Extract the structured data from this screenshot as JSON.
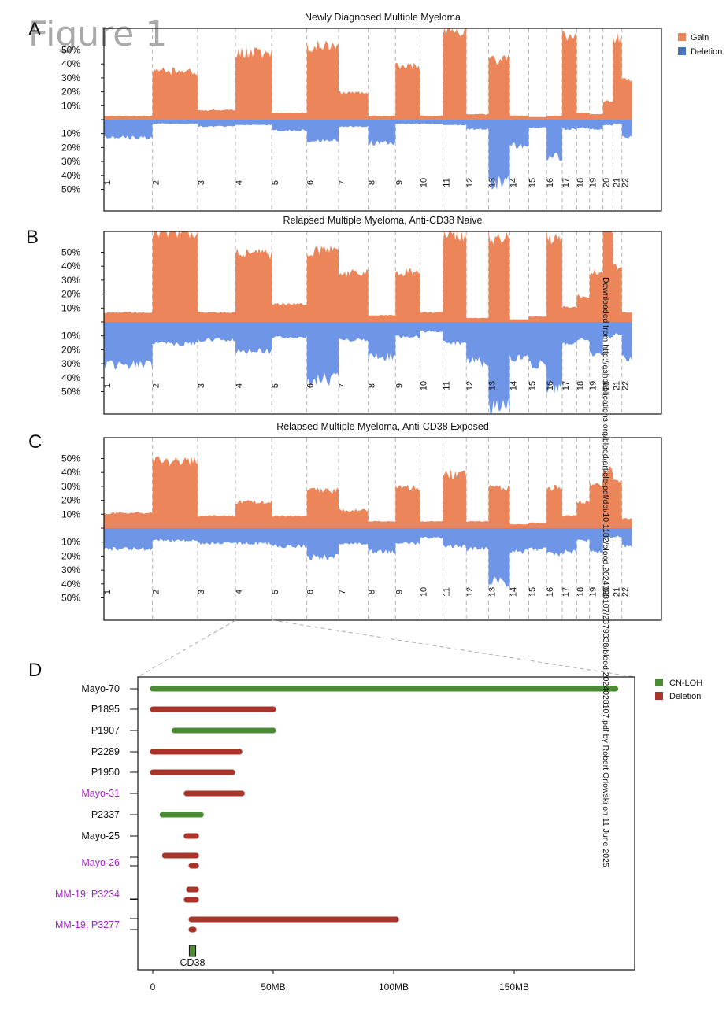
{
  "figure_label": "Figure 1",
  "panel_letters": [
    "A",
    "B",
    "C",
    "D"
  ],
  "watermark": "Downloaded from http://ashpublications.org/blood/article-pdf/doi/10.1182/blood.2024028107/2379338/blood.2024028107.pdf by Robert Orlowski on 11 June 2025",
  "colors": {
    "gain": "#ec8559",
    "deletion": "#6f95e6",
    "legend_deletion": "#4a72b8",
    "cnloh": "#4b8b34",
    "del_bar": "#a8342a",
    "purple": "#a326c4",
    "grid": "#b5b5b5"
  },
  "chart_data": [
    {
      "type": "area",
      "panel": "A",
      "title": "Newly Diagnosed Multiple Myeloma",
      "legend": [
        "Gain",
        "Deletion"
      ],
      "legend_position": "top-right",
      "x_categories": [
        "1",
        "2",
        "3",
        "4",
        "5",
        "6",
        "7",
        "8",
        "9",
        "10",
        "11",
        "12",
        "13",
        "14",
        "15",
        "16",
        "17",
        "18",
        "19",
        "20",
        "21",
        "22"
      ],
      "y_ticks_gain": [
        "10%",
        "20%",
        "30%",
        "40%",
        "50%"
      ],
      "y_ticks_deletion": [
        "10%",
        "20%",
        "30%",
        "40%",
        "50%"
      ],
      "series": [
        {
          "name": "Gain",
          "values": [
            2,
            34,
            6,
            47,
            4,
            52,
            18,
            2,
            37,
            2,
            62,
            3,
            42,
            2,
            1,
            2,
            60,
            4,
            3,
            12,
            57,
            28
          ]
        },
        {
          "name": "Deletion",
          "values": [
            12,
            2,
            4,
            3,
            7,
            14,
            4,
            16,
            2,
            2,
            3,
            6,
            45,
            18,
            5,
            26,
            6,
            5,
            6,
            3,
            2,
            12
          ]
        }
      ]
    },
    {
      "type": "area",
      "panel": "B",
      "title": "Relapsed Multiple Myeloma, Anti-CD38 Naive",
      "x_categories": [
        "1",
        "2",
        "3",
        "4",
        "5",
        "6",
        "7",
        "8",
        "9",
        "10",
        "11",
        "12",
        "13",
        "14",
        "15",
        "16",
        "17",
        "18",
        "19",
        "20",
        "21",
        "22"
      ],
      "y_ticks_gain": [
        "10%",
        "20%",
        "30%",
        "40%",
        "50%"
      ],
      "y_ticks_deletion": [
        "10%",
        "20%",
        "30%",
        "40%",
        "50%"
      ],
      "series": [
        {
          "name": "Gain",
          "values": [
            6,
            65,
            6,
            48,
            12,
            50,
            34,
            4,
            35,
            6,
            62,
            2,
            60,
            1,
            3,
            60,
            10,
            18,
            35,
            65,
            38,
            6
          ]
        },
        {
          "name": "Deletion",
          "values": [
            30,
            15,
            12,
            20,
            10,
            40,
            12,
            24,
            10,
            6,
            14,
            28,
            60,
            25,
            30,
            45,
            15,
            12,
            22,
            10,
            8,
            25
          ]
        }
      ]
    },
    {
      "type": "area",
      "panel": "C",
      "title": "Relapsed Multiple Myeloma, Anti-CD38 Exposed",
      "x_categories": [
        "1",
        "2",
        "3",
        "4",
        "5",
        "6",
        "7",
        "8",
        "9",
        "10",
        "11",
        "12",
        "13",
        "14",
        "15",
        "16",
        "17",
        "18",
        "19",
        "20",
        "21",
        "22"
      ],
      "y_ticks_gain": [
        "10%",
        "20%",
        "30%",
        "40%",
        "50%"
      ],
      "y_ticks_deletion": [
        "10%",
        "20%",
        "30%",
        "40%",
        "50%"
      ],
      "series": [
        {
          "name": "Gain",
          "values": [
            10,
            48,
            8,
            18,
            8,
            26,
            12,
            4,
            28,
            4,
            38,
            4,
            28,
            2,
            3,
            28,
            8,
            18,
            30,
            40,
            32,
            6
          ]
        },
        {
          "name": "Deletion",
          "values": [
            14,
            8,
            10,
            10,
            12,
            20,
            10,
            16,
            10,
            6,
            12,
            14,
            38,
            16,
            14,
            18,
            16,
            8,
            16,
            6,
            5,
            12
          ]
        }
      ]
    },
    {
      "type": "bar",
      "panel": "D",
      "legend": [
        "CN-LOH",
        "Deletion"
      ],
      "legend_position": "top-right",
      "x_ticks": [
        "0",
        "50MB",
        "100MB",
        "150MB"
      ],
      "xlim_mb": [
        0,
        200
      ],
      "marker": {
        "label": "CD38",
        "start_mb": 15.5,
        "end_mb": 17.5
      },
      "samples": [
        {
          "label": "Mayo-70",
          "color": "black",
          "segments": [
            {
              "type": "CN-LOH",
              "start_mb": 0,
              "end_mb": 192
            }
          ]
        },
        {
          "label": "P1895",
          "color": "black",
          "segments": [
            {
              "type": "Deletion",
              "start_mb": 0,
              "end_mb": 50
            }
          ]
        },
        {
          "label": "P1907",
          "color": "black",
          "segments": [
            {
              "type": "CN-LOH",
              "start_mb": 9,
              "end_mb": 50
            }
          ]
        },
        {
          "label": "P2289",
          "color": "black",
          "segments": [
            {
              "type": "Deletion",
              "start_mb": 0,
              "end_mb": 36
            }
          ]
        },
        {
          "label": "P1950",
          "color": "black",
          "segments": [
            {
              "type": "Deletion",
              "start_mb": 0,
              "end_mb": 33
            }
          ]
        },
        {
          "label": "Mayo-31",
          "color": "purple",
          "segments": [
            {
              "type": "Deletion",
              "start_mb": 14,
              "end_mb": 37
            }
          ]
        },
        {
          "label": "P2337",
          "color": "black",
          "segments": [
            {
              "type": "CN-LOH",
              "start_mb": 4,
              "end_mb": 20
            }
          ]
        },
        {
          "label": "Mayo-25",
          "color": "black",
          "segments": [
            {
              "type": "Deletion",
              "start_mb": 14,
              "end_mb": 18
            }
          ]
        },
        {
          "label": "Mayo-26",
          "color": "purple",
          "segments": [
            {
              "type": "Deletion",
              "start_mb": 5,
              "end_mb": 18
            },
            {
              "type": "Deletion",
              "start_mb": 16,
              "end_mb": 18
            }
          ]
        },
        {
          "label": "MM-19; P3234",
          "color": "purple",
          "segments": [
            {
              "type": "Deletion",
              "start_mb": 15,
              "end_mb": 18
            },
            {
              "type": "Deletion",
              "start_mb": 14,
              "end_mb": 18
            }
          ]
        },
        {
          "label": "MM-19; P3277",
          "color": "purple",
          "segments": [
            {
              "type": "Deletion",
              "start_mb": 16,
              "end_mb": 101
            },
            {
              "type": "Deletion",
              "start_mb": 16,
              "end_mb": 17
            }
          ]
        }
      ]
    }
  ]
}
